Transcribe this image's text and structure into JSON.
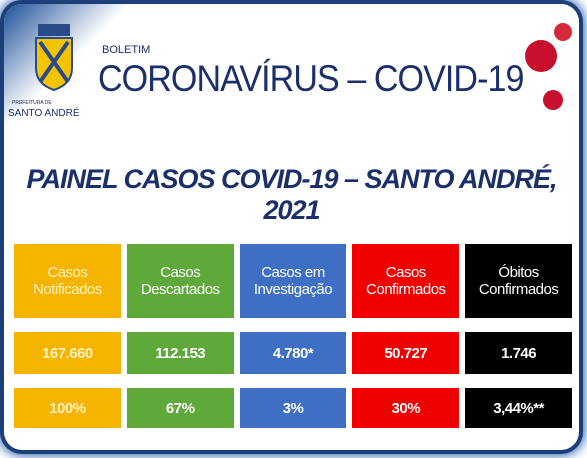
{
  "header": {
    "logo_caption": "PREFEITURA DE",
    "logo_city": "SANTO ANDRÉ",
    "kicker": "BOLETIM",
    "title": "CORONAVÍRUS – COVID-19"
  },
  "panel_title": "PAINEL CASOS COVID-19 – SANTO ANDRÉ, 2021",
  "table": {
    "columns": [
      {
        "label": "Casos Notificados",
        "count": "167.660",
        "percent": "100%",
        "color": "#f5b400"
      },
      {
        "label": "Casos Descartados",
        "count": "112.153",
        "percent": "67%",
        "color": "#5fa83a"
      },
      {
        "label": "Casos em Investigação",
        "count": "4.780*",
        "percent": "3%",
        "color": "#3f6fc4"
      },
      {
        "label": "Casos Confirmados",
        "count": "50.727",
        "percent": "30%",
        "color": "#f00000"
      },
      {
        "label": "Óbitos Confirmados",
        "count": "1.746",
        "percent": "3,44%**",
        "color": "#000000"
      }
    ]
  }
}
